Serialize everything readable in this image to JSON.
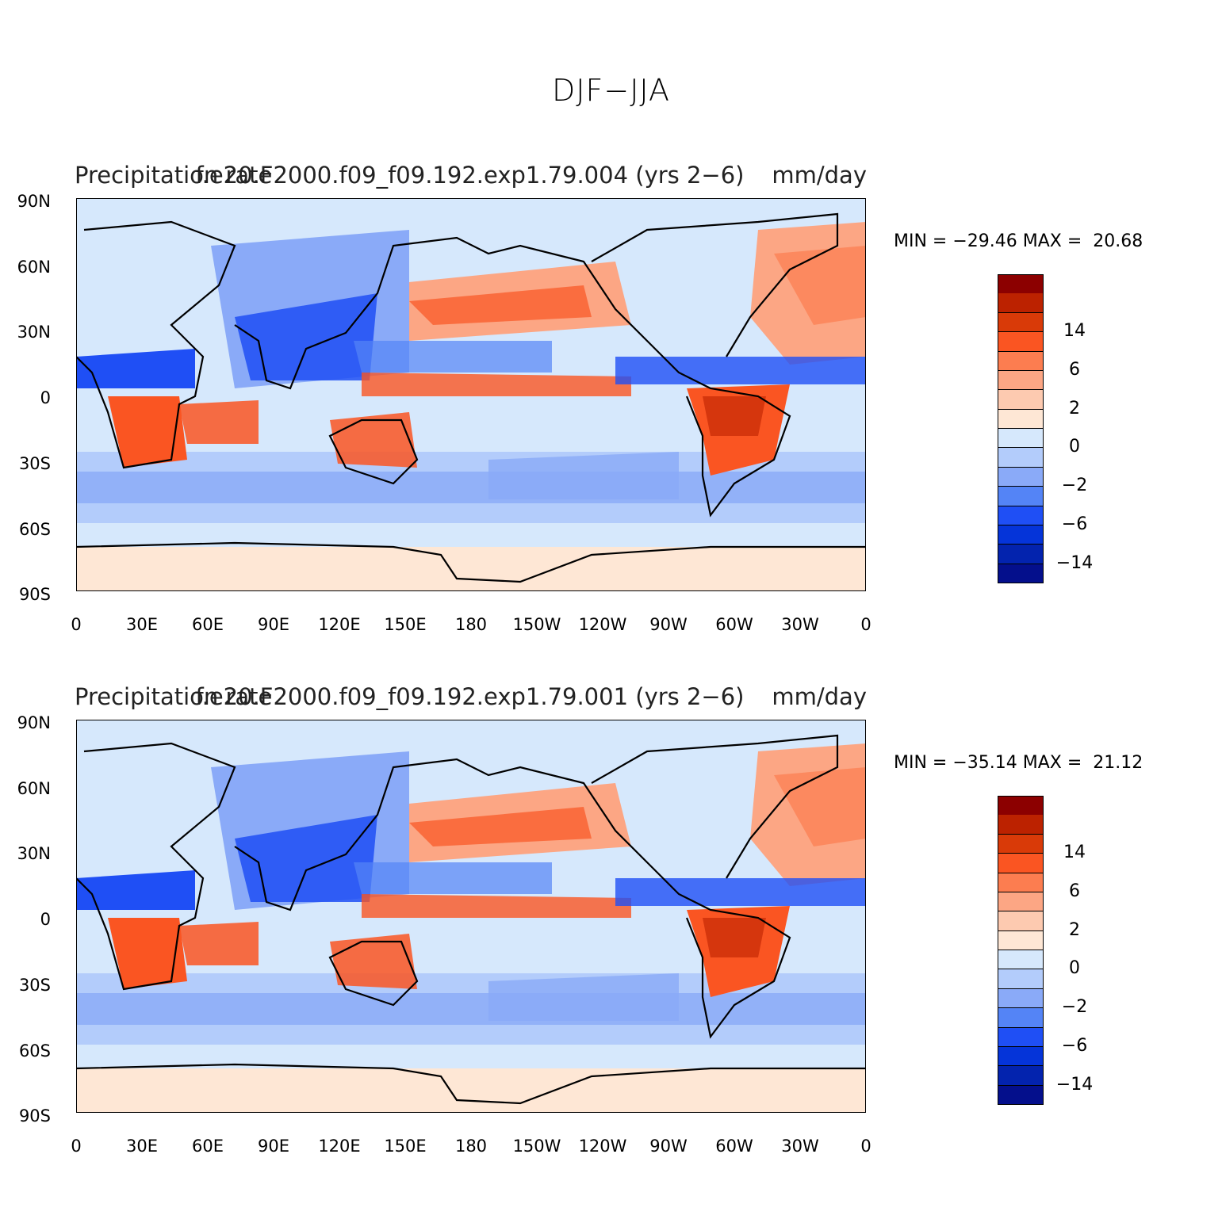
{
  "figure": {
    "title": "DJF−JJA"
  },
  "axes": {
    "y_ticks": [
      "90N",
      "60N",
      "30N",
      "0",
      "30S",
      "60S",
      "90S"
    ],
    "x_ticks": [
      "0",
      "30E",
      "60E",
      "90E",
      "120E",
      "150E",
      "180",
      "150W",
      "120W",
      "90W",
      "60W",
      "30W",
      "0"
    ]
  },
  "colorbar": {
    "labels": [
      "14",
      "6",
      "2",
      "0",
      "−2",
      "−6",
      "−14"
    ],
    "colors": [
      "#8c0000",
      "#bc2200",
      "#d93a08",
      "#fa5522",
      "#fc7d50",
      "#fca684",
      "#fdcab0",
      "#fee7d5",
      "#d6e8fc",
      "#b3ccfb",
      "#8aaaf8",
      "#5484f6",
      "#1f4ff5",
      "#0534d9",
      "#0323ae",
      "#040f8c"
    ]
  },
  "panels": [
    {
      "left_title": "Precipitation rate",
      "center_title": "f.e20.F2000.f09_f09.192.exp1.79.004 (yrs 2−6)",
      "right_title": "mm/day",
      "stats": "MIN = −29.46 MAX =  20.68",
      "chart_data": {
        "type": "heatmap",
        "variable": "Precipitation rate",
        "units": "mm/day",
        "case": "f.e20.F2000.f09_f09.192.exp1.79.004 (yrs 2−6)",
        "season_difference": "DJF−JJA",
        "min": -29.46,
        "max": 20.68,
        "lon_range": [
          0,
          360
        ],
        "lat_range": [
          -90,
          90
        ]
      }
    },
    {
      "left_title": "Precipitation rate",
      "center_title": "f.e20.F2000.f09_f09.192.exp1.79.001 (yrs 2−6)",
      "right_title": "mm/day",
      "stats": "MIN = −35.14 MAX =  21.12",
      "chart_data": {
        "type": "heatmap",
        "variable": "Precipitation rate",
        "units": "mm/day",
        "case": "f.e20.F2000.f09_f09.192.exp1.79.001 (yrs 2−6)",
        "season_difference": "DJF−JJA",
        "min": -35.14,
        "max": 21.12,
        "lon_range": [
          0,
          360
        ],
        "lat_range": [
          -90,
          90
        ]
      }
    }
  ]
}
